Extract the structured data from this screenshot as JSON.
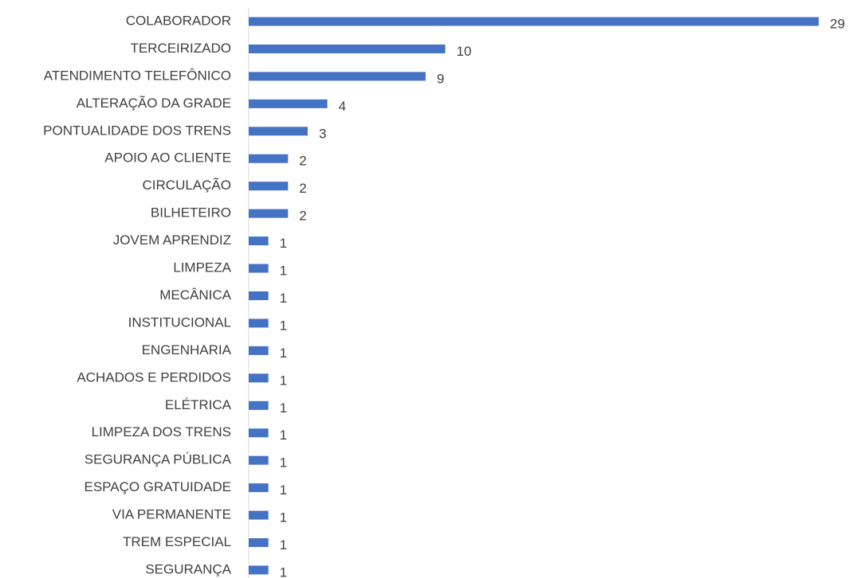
{
  "chart_data": {
    "type": "bar",
    "orientation": "horizontal",
    "categories": [
      "COLABORADOR",
      "TERCEIRIZADO",
      "ATENDIMENTO TELEFÔNICO",
      "ALTERAÇÃO DA GRADE",
      "PONTUALIDADE DOS TRENS",
      "APOIO AO CLIENTE",
      "CIRCULAÇÃO",
      "BILHETEIRO",
      "JOVEM APRENDIZ",
      "LIMPEZA",
      "MECÂNICA",
      "INSTITUCIONAL",
      "ENGENHARIA",
      "ACHADOS E PERDIDOS",
      "ELÉTRICA",
      "LIMPEZA DOS TRENS",
      "SEGURANÇA PÚBLICA",
      "ESPAÇO GRATUIDADE",
      "VIA PERMANENTE",
      "TREM ESPECIAL",
      "SEGURANÇA"
    ],
    "values": [
      29,
      10,
      9,
      4,
      3,
      2,
      2,
      2,
      1,
      1,
      1,
      1,
      1,
      1,
      1,
      1,
      1,
      1,
      1,
      1,
      1
    ],
    "color": "#4472c4",
    "xlim": [
      0,
      29
    ]
  }
}
